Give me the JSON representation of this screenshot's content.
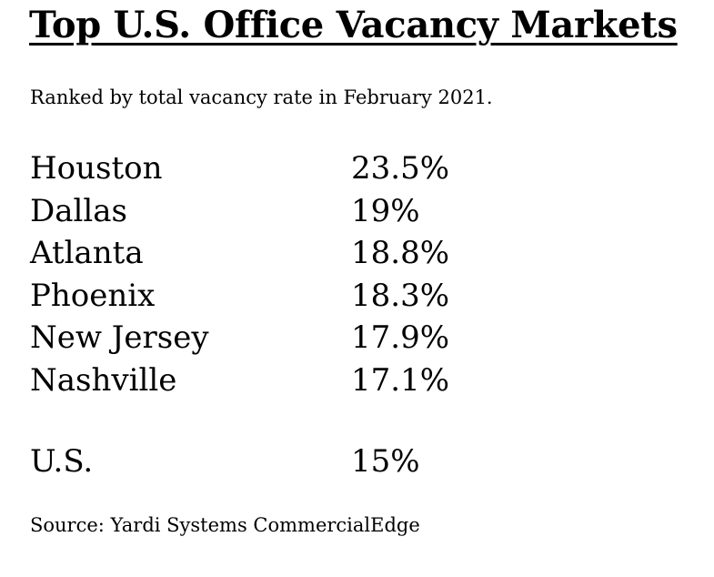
{
  "title": "Top U.S. Office Vacancy Markets",
  "subtitle": "Ranked by total vacancy rate in February 2021.",
  "markets": [
    {
      "name": "Houston",
      "rate": "23.5%"
    },
    {
      "name": "Dallas",
      "rate": "19%"
    },
    {
      "name": "Atlanta",
      "rate": "18.8%"
    },
    {
      "name": "Phoenix",
      "rate": "18.3%"
    },
    {
      "name": "New Jersey",
      "rate": "17.9%"
    },
    {
      "name": "Nashville",
      "rate": "17.1%"
    }
  ],
  "national": {
    "name": "U.S.",
    "rate": "15%"
  },
  "source": "Source: Yardi Systems CommercialEdge"
}
